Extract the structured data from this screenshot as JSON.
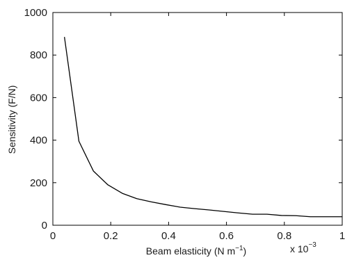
{
  "chart_data": {
    "type": "line",
    "title": "",
    "xlabel": "Beam elasticity (N m",
    "xlabel_superscript": "−1",
    "xlabel_suffix": ")",
    "ylabel": "Sensitivity (F/N)",
    "x_multiplier_label": "x 10",
    "x_multiplier_exponent": "−3",
    "xlim": [
      0,
      1
    ],
    "ylim": [
      0,
      1000
    ],
    "x_ticks": [
      0,
      0.2,
      0.4,
      0.6,
      0.8,
      1
    ],
    "x_tick_labels": [
      "0",
      "0.2",
      "0.4",
      "0.6",
      "0.8",
      "1"
    ],
    "y_ticks": [
      0,
      200,
      400,
      600,
      800,
      1000
    ],
    "y_tick_labels": [
      "0",
      "200",
      "400",
      "600",
      "800",
      "1000"
    ],
    "grid": false,
    "series": [
      {
        "color": "#000000",
        "x": [
          0.04,
          0.09,
          0.14,
          0.19,
          0.24,
          0.29,
          0.34,
          0.39,
          0.44,
          0.49,
          0.54,
          0.59,
          0.64,
          0.69,
          0.74,
          0.79,
          0.84,
          0.89,
          0.94,
          1.0
        ],
        "y": [
          885,
          395,
          255,
          190,
          150,
          125,
          110,
          97,
          85,
          78,
          72,
          65,
          58,
          52,
          52,
          46,
          45,
          40,
          40,
          40
        ]
      }
    ]
  }
}
